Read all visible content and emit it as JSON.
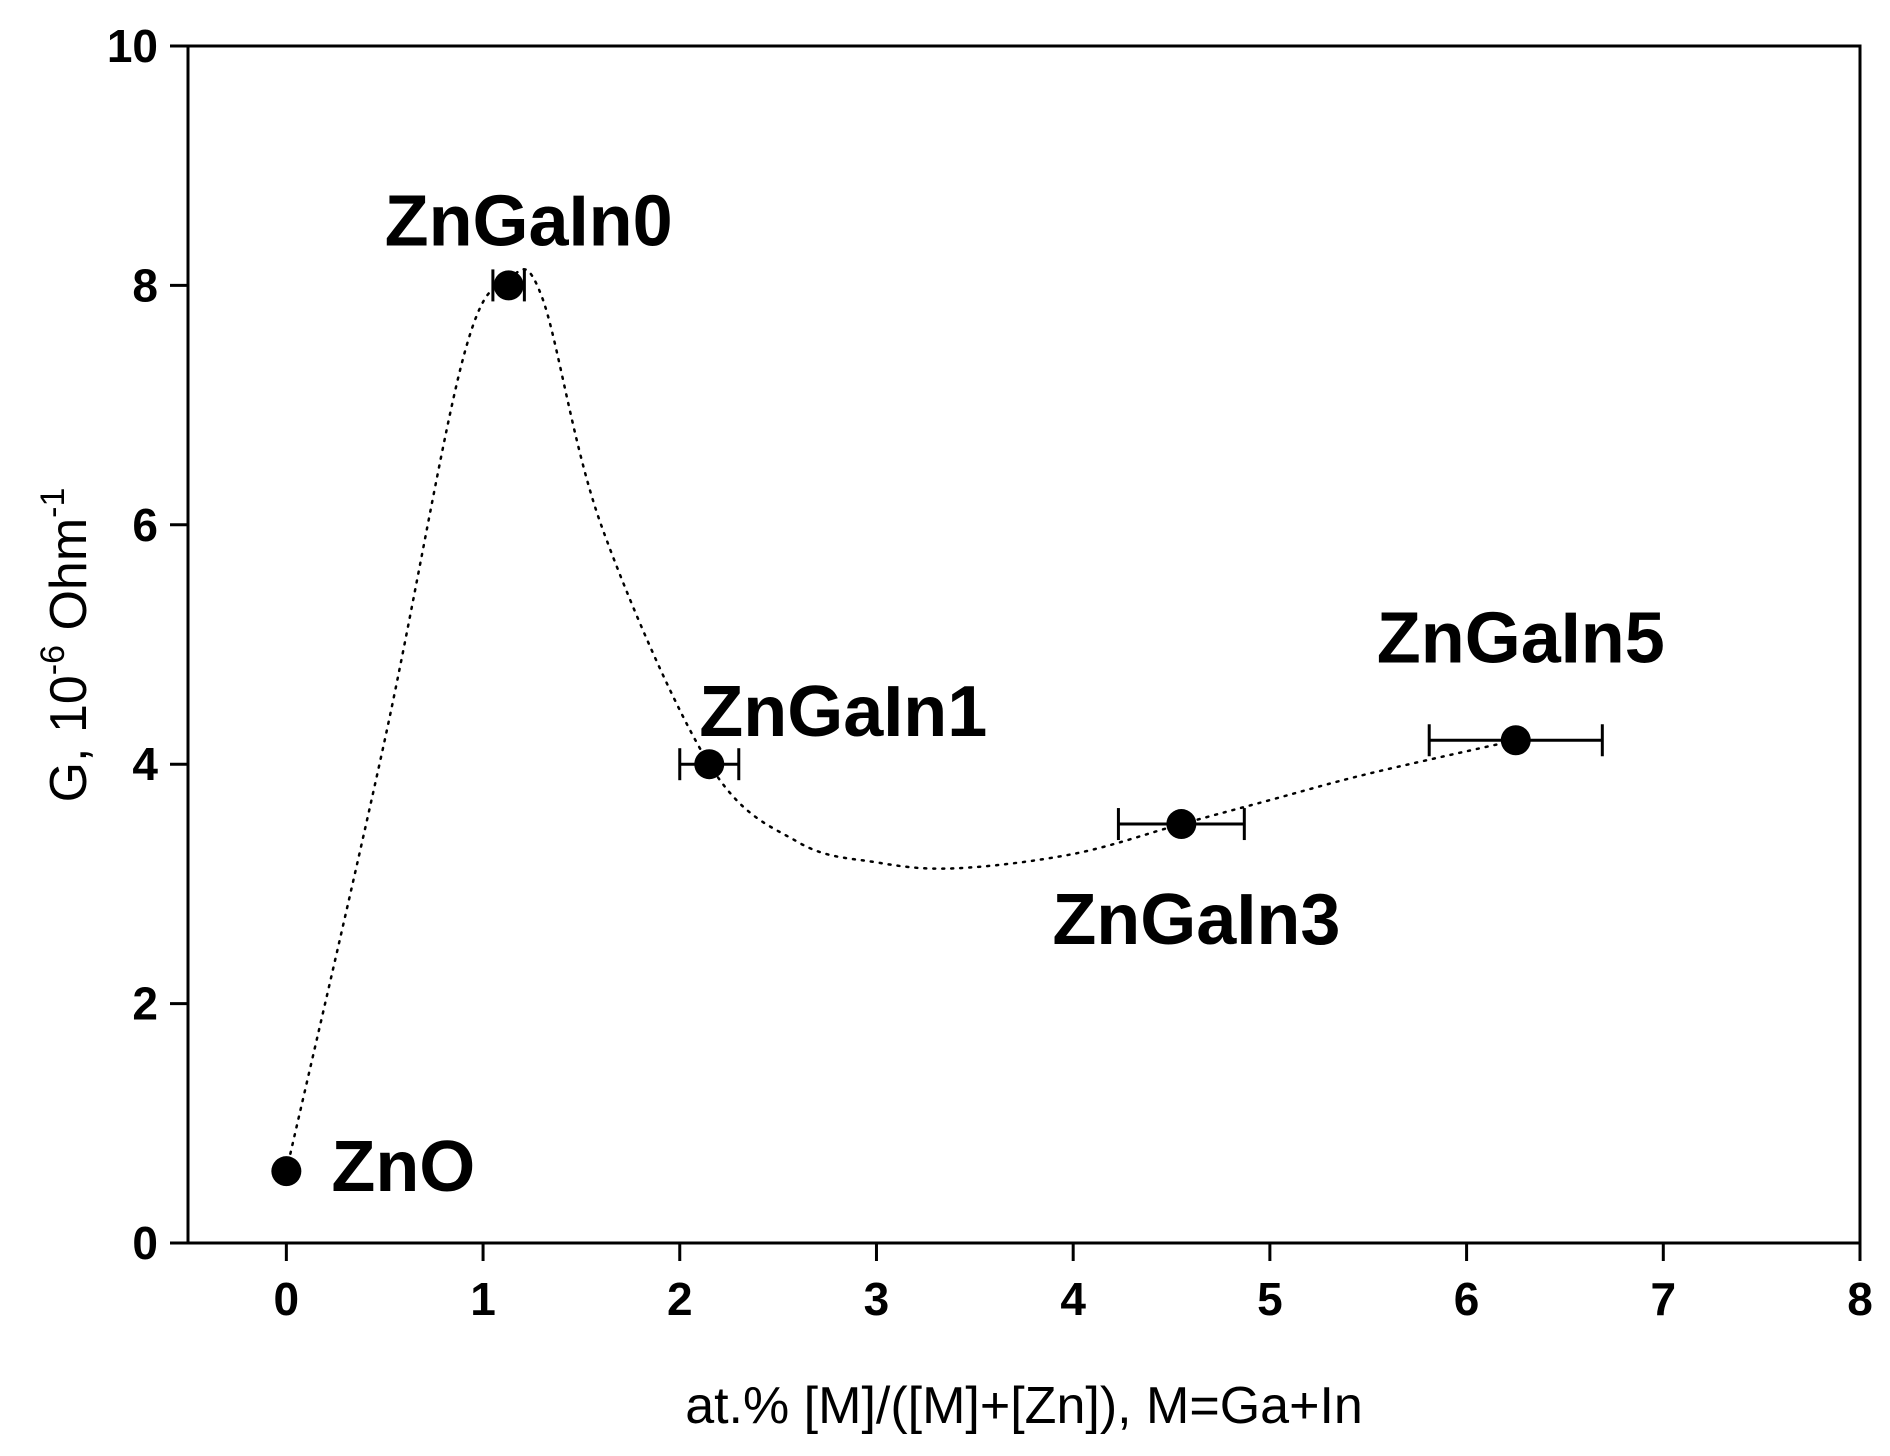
{
  "chart_data": {
    "type": "scatter",
    "title": "",
    "xlabel": "at.% [M]/([M]+[Zn]), M=Ga+In",
    "ylabel_main": "G, 10",
    "ylabel_exp": "-6",
    "ylabel_unit": " Ohm",
    "ylabel_unit_exp": "-1",
    "xlim": [
      -0.5,
      8
    ],
    "ylim": [
      0,
      10
    ],
    "xticks": [
      0,
      1,
      2,
      3,
      4,
      5,
      6,
      7,
      8
    ],
    "yticks": [
      0,
      2,
      4,
      6,
      8,
      10
    ],
    "xtick_labels": [
      "0",
      "1",
      "2",
      "3",
      "4",
      "5",
      "6",
      "7",
      "8"
    ],
    "ytick_labels": [
      "0",
      "2",
      "4",
      "6",
      "8",
      "10"
    ],
    "grid": false,
    "line_style": "dotted",
    "marker_color": "#000000",
    "points": [
      {
        "label": "ZnO",
        "x": 0.0,
        "y": 0.6,
        "xerr": 0
      },
      {
        "label": "ZnGaIn0",
        "x": 1.13,
        "y": 8.0,
        "xerr": 0.08
      },
      {
        "label": "ZnGaIn1",
        "x": 2.15,
        "y": 4.0,
        "xerr": 0.15
      },
      {
        "label": "ZnGaIn3",
        "x": 4.55,
        "y": 3.5,
        "xerr": 0.32
      },
      {
        "label": "ZnGaIn5",
        "x": 6.25,
        "y": 4.2,
        "xerr": 0.44
      }
    ],
    "curve": {
      "x": [
        0.0,
        0.5,
        0.9,
        1.13,
        1.3,
        1.6,
        2.15,
        2.6,
        3.0,
        3.4,
        4.0,
        4.55,
        5.0,
        5.5,
        6.25
      ],
      "y": [
        0.6,
        4.2,
        7.4,
        8.05,
        7.9,
        6.0,
        4.0,
        3.35,
        3.18,
        3.13,
        3.25,
        3.5,
        3.7,
        3.92,
        4.2
      ]
    }
  }
}
